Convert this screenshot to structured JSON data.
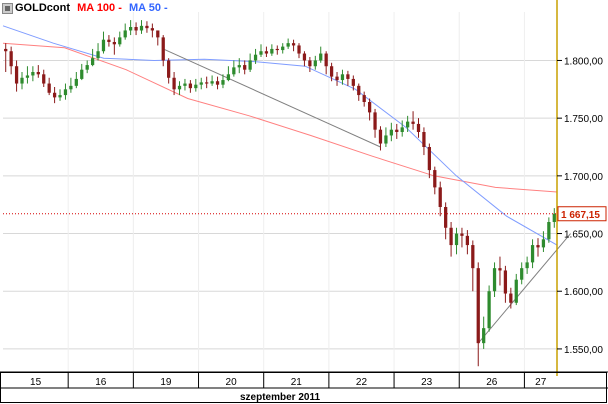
{
  "legend": {
    "symbol": "GOLDcont",
    "ma100_label": "MA 100",
    "ma50_label": "MA 50",
    "dash": "-"
  },
  "colors": {
    "up_candle": "#2e8b2e",
    "down_candle": "#8b1a1a",
    "ma100": "#ff8080",
    "ma50": "#7f9cff",
    "price_line": "#d60000",
    "trend_line": "#808080",
    "grid": "#d8d8d8",
    "frame": "#000000",
    "right_border": "#c8a000",
    "last_price_box": "#cc2200",
    "ma100_label": "#ff0000",
    "ma50_label": "#3366ff"
  },
  "chart_data": {
    "type": "candlestick",
    "y_axis": {
      "min": 1530,
      "max": 1842,
      "ticks": [
        "1.800,00",
        "1.750,00",
        "1.700,00",
        "1.650,00",
        "1.600,00",
        "1.550,00"
      ],
      "tick_values": [
        1800,
        1750,
        1700,
        1650,
        1600,
        1550
      ]
    },
    "x_axis": {
      "day_labels": [
        "15",
        "16",
        "19",
        "20",
        "21",
        "22",
        "23",
        "26",
        "27"
      ],
      "month_label": "szeptember 2011"
    },
    "last_price": {
      "value": 1667.15,
      "label": "1 667,15"
    },
    "day_bar_counts": [
      12,
      12,
      12,
      12,
      12,
      12,
      12,
      12,
      6
    ],
    "candles": [
      [
        1810,
        1808,
        1815,
        1790
      ],
      [
        1808,
        1795,
        1812,
        1788
      ],
      [
        1795,
        1780,
        1800,
        1773
      ],
      [
        1780,
        1785,
        1790,
        1775
      ],
      [
        1785,
        1787,
        1795,
        1780
      ],
      [
        1787,
        1790,
        1795,
        1782
      ],
      [
        1790,
        1788,
        1796,
        1785
      ],
      [
        1788,
        1780,
        1792,
        1777
      ],
      [
        1780,
        1772,
        1785,
        1770
      ],
      [
        1772,
        1768,
        1777,
        1763
      ],
      [
        1768,
        1770,
        1775,
        1765
      ],
      [
        1770,
        1775,
        1780,
        1766
      ],
      [
        1775,
        1778,
        1785,
        1772
      ],
      [
        1778,
        1784,
        1790,
        1776
      ],
      [
        1784,
        1792,
        1797,
        1783
      ],
      [
        1792,
        1796,
        1800,
        1789
      ],
      [
        1796,
        1802,
        1810,
        1795
      ],
      [
        1802,
        1808,
        1815,
        1800
      ],
      [
        1808,
        1818,
        1825,
        1806
      ],
      [
        1818,
        1816,
        1822,
        1812
      ],
      [
        1816,
        1814,
        1820,
        1805
      ],
      [
        1814,
        1820,
        1825,
        1812
      ],
      [
        1820,
        1826,
        1832,
        1818
      ],
      [
        1826,
        1829,
        1835,
        1822
      ],
      [
        1829,
        1826,
        1833,
        1822
      ],
      [
        1826,
        1830,
        1835,
        1823
      ],
      [
        1830,
        1828,
        1834,
        1824
      ],
      [
        1828,
        1826,
        1832,
        1820
      ],
      [
        1826,
        1820,
        1826,
        1813
      ],
      [
        1820,
        1800,
        1822,
        1795
      ],
      [
        1800,
        1785,
        1802,
        1780
      ],
      [
        1785,
        1775,
        1790,
        1770
      ],
      [
        1775,
        1778,
        1782,
        1770
      ],
      [
        1778,
        1780,
        1784,
        1774
      ],
      [
        1780,
        1776,
        1783,
        1772
      ],
      [
        1776,
        1779,
        1784,
        1773
      ],
      [
        1779,
        1781,
        1785,
        1775
      ],
      [
        1781,
        1780,
        1786,
        1776
      ],
      [
        1780,
        1782,
        1787,
        1778
      ],
      [
        1782,
        1779,
        1786,
        1775
      ],
      [
        1779,
        1783,
        1788,
        1776
      ],
      [
        1783,
        1788,
        1795,
        1782
      ],
      [
        1788,
        1794,
        1800,
        1786
      ],
      [
        1794,
        1796,
        1802,
        1789
      ],
      [
        1796,
        1792,
        1800,
        1788
      ],
      [
        1792,
        1800,
        1806,
        1790
      ],
      [
        1800,
        1805,
        1810,
        1797
      ],
      [
        1805,
        1808,
        1814,
        1803
      ],
      [
        1808,
        1806,
        1812,
        1803
      ],
      [
        1806,
        1810,
        1814,
        1804
      ],
      [
        1810,
        1809,
        1813,
        1805
      ],
      [
        1809,
        1812,
        1815,
        1806
      ],
      [
        1812,
        1815,
        1819,
        1810
      ],
      [
        1815,
        1813,
        1818,
        1808
      ],
      [
        1813,
        1806,
        1815,
        1802
      ],
      [
        1806,
        1800,
        1808,
        1795
      ],
      [
        1800,
        1795,
        1803,
        1790
      ],
      [
        1795,
        1800,
        1804,
        1792
      ],
      [
        1800,
        1806,
        1812,
        1798
      ],
      [
        1806,
        1795,
        1808,
        1788
      ],
      [
        1795,
        1786,
        1798,
        1782
      ],
      [
        1786,
        1783,
        1790,
        1778
      ],
      [
        1783,
        1788,
        1792,
        1779
      ],
      [
        1788,
        1784,
        1791,
        1778
      ],
      [
        1784,
        1778,
        1787,
        1774
      ],
      [
        1778,
        1770,
        1780,
        1765
      ],
      [
        1770,
        1764,
        1773,
        1760
      ],
      [
        1764,
        1755,
        1767,
        1748
      ],
      [
        1755,
        1740,
        1758,
        1733
      ],
      [
        1740,
        1728,
        1743,
        1722
      ],
      [
        1728,
        1735,
        1742,
        1725
      ],
      [
        1735,
        1740,
        1746,
        1730
      ],
      [
        1740,
        1738,
        1745,
        1732
      ],
      [
        1738,
        1742,
        1748,
        1734
      ],
      [
        1742,
        1747,
        1752,
        1738
      ],
      [
        1747,
        1745,
        1756,
        1740
      ],
      [
        1745,
        1738,
        1750,
        1733
      ],
      [
        1738,
        1725,
        1742,
        1718
      ],
      [
        1725,
        1705,
        1728,
        1698
      ],
      [
        1705,
        1690,
        1708,
        1684
      ],
      [
        1690,
        1673,
        1695,
        1665
      ],
      [
        1673,
        1655,
        1677,
        1645
      ],
      [
        1655,
        1640,
        1660,
        1630
      ],
      [
        1640,
        1650,
        1655,
        1632
      ],
      [
        1650,
        1648,
        1655,
        1638
      ],
      [
        1648,
        1640,
        1653,
        1632
      ],
      [
        1640,
        1620,
        1644,
        1600
      ],
      [
        1620,
        1555,
        1625,
        1535
      ],
      [
        1555,
        1568,
        1578,
        1550
      ],
      [
        1568,
        1600,
        1605,
        1565
      ],
      [
        1600,
        1620,
        1625,
        1595
      ],
      [
        1620,
        1618,
        1630,
        1605
      ],
      [
        1618,
        1598,
        1622,
        1590
      ],
      [
        1598,
        1590,
        1603,
        1585
      ],
      [
        1590,
        1610,
        1615,
        1588
      ],
      [
        1610,
        1620,
        1625,
        1606
      ],
      [
        1620,
        1625,
        1630,
        1615
      ],
      [
        1625,
        1640,
        1645,
        1620
      ],
      [
        1640,
        1638,
        1646,
        1630
      ],
      [
        1638,
        1645,
        1652,
        1634
      ],
      [
        1645,
        1660,
        1664,
        1642
      ],
      [
        1660,
        1667.15,
        1672,
        1655
      ]
    ],
    "ma100": [
      1815,
      1811,
      1792,
      1767,
      1752,
      1735,
      1717,
      1700,
      1690,
      1686
    ],
    "ma50": [
      1830,
      1815,
      1802,
      1800,
      1801,
      1799,
      1795,
      1775,
      1742,
      1700,
      1665,
      1640
    ],
    "trend_lines": [
      {
        "from": [
          1810,
          29
        ],
        "to": [
          1725,
          69
        ]
      },
      {
        "from": [
          1555,
          87
        ],
        "to": [
          1650,
          104
        ]
      }
    ]
  }
}
